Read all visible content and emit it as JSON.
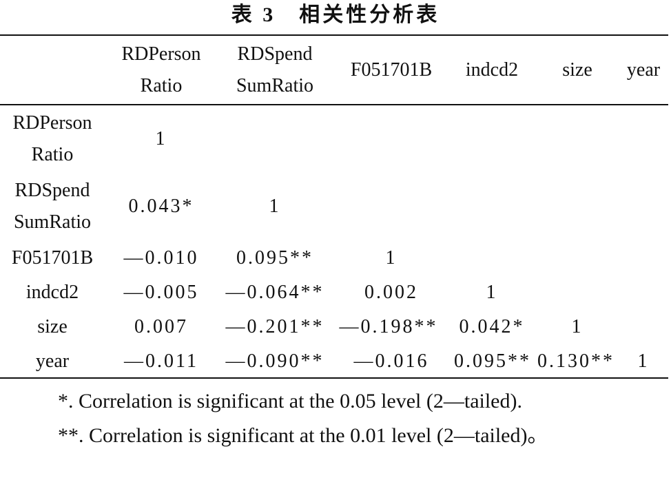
{
  "title": "表 3　相关性分析表",
  "columns": [
    {
      "line1": "RDPerson",
      "line2": "Ratio"
    },
    {
      "line1": "RDSpend",
      "line2": "SumRatio"
    },
    {
      "line1": "F051701B",
      "line2": ""
    },
    {
      "line1": "indcd2",
      "line2": ""
    },
    {
      "line1": "size",
      "line2": ""
    },
    {
      "line1": "year",
      "line2": ""
    }
  ],
  "rows": [
    {
      "label1": "RDPerson",
      "label2": "Ratio",
      "cells": [
        "1",
        "",
        "",
        "",
        "",
        ""
      ]
    },
    {
      "label1": "RDSpend",
      "label2": "SumRatio",
      "cells": [
        "0.043*",
        "1",
        "",
        "",
        "",
        ""
      ]
    },
    {
      "label1": "F051701B",
      "label2": "",
      "cells": [
        "—0.010",
        "0.095**",
        "1",
        "",
        "",
        ""
      ]
    },
    {
      "label1": "indcd2",
      "label2": "",
      "cells": [
        "—0.005",
        "—0.064**",
        "0.002",
        "1",
        "",
        ""
      ]
    },
    {
      "label1": "size",
      "label2": "",
      "cells": [
        "0.007",
        "—0.201**",
        "—0.198**",
        "0.042*",
        "1",
        ""
      ]
    },
    {
      "label1": "year",
      "label2": "",
      "cells": [
        "—0.011",
        "—0.090**",
        "—0.016",
        "0.095**",
        "0.130**",
        "1"
      ]
    }
  ],
  "notes": [
    "*. Correlation is significant at the 0.05 level (2—tailed).",
    "**. Correlation is significant at the 0.01 level (2—tailed)。"
  ]
}
